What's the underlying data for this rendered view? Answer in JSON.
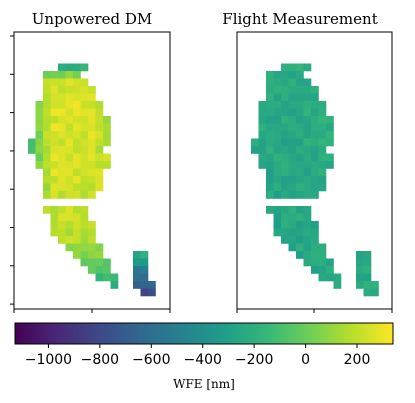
{
  "chart_data": {
    "type": "heatmap",
    "panels": [
      {
        "title": "Unpowered DM",
        "field": "unpowered",
        "ticks": "y-and-x"
      },
      {
        "title": "Flight Measurement",
        "field": "flight",
        "ticks": "x-only"
      }
    ],
    "colorbar": {
      "label": "WFE [nm]",
      "range": [
        -1130,
        340
      ],
      "ticks": [
        -1000,
        -800,
        -600,
        -400,
        -200,
        0,
        200
      ],
      "tick_labels": [
        "−1000",
        "−800",
        "−600",
        "−400",
        "−200",
        "0",
        "200"
      ],
      "colormap": "viridis"
    },
    "field_summary": {
      "unpowered": {
        "typical_range": [
          -300,
          330
        ],
        "edge_values": [
          -1100,
          -700
        ]
      },
      "flight": {
        "typical_range": [
          -350,
          -180
        ]
      }
    },
    "colors": {
      "viridis": [
        "#440154",
        "#482878",
        "#3e4989",
        "#31688e",
        "#26828e",
        "#1f9e89",
        "#35b779",
        "#6ece58",
        "#b5de2b",
        "#fde725"
      ]
    }
  }
}
